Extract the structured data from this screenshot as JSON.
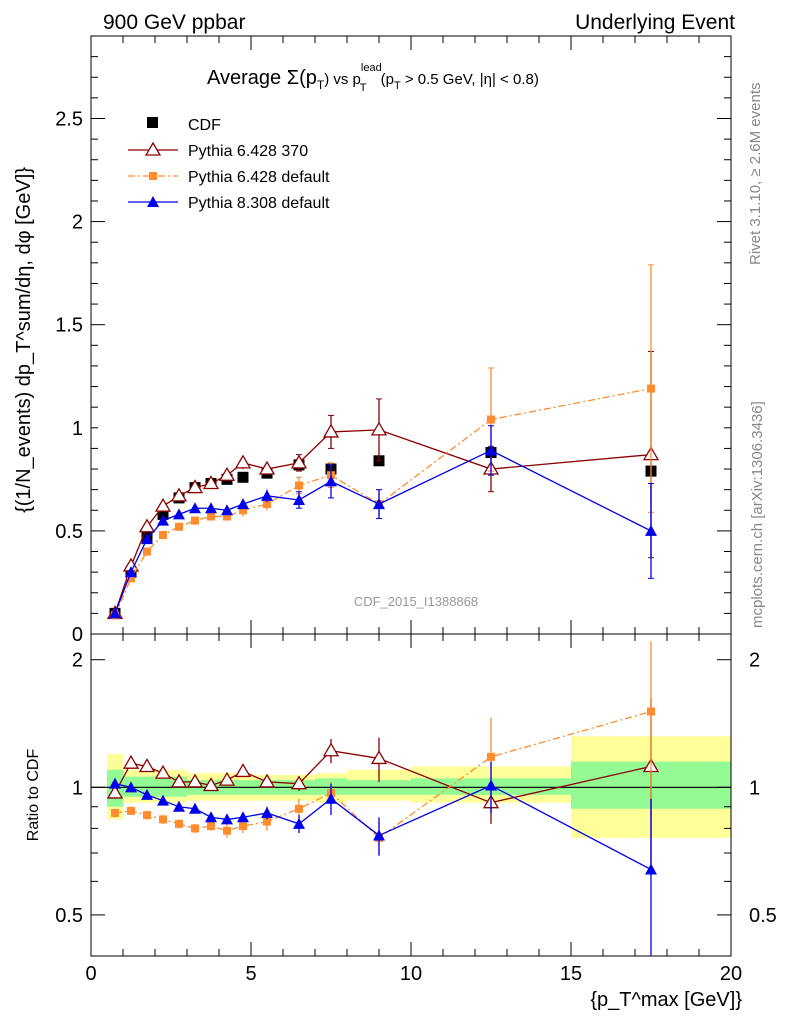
{
  "header": {
    "left": "900 GeV ppbar",
    "right": "Underlying Event"
  },
  "plot_title": {
    "average": "Average",
    "sigma": "Σ(p",
    "sub_t": "T",
    "close_vs": ") vs p",
    "sup_lead": "lead",
    "sub_t2": "T",
    "cut_open": " (p",
    "sub_t3": "T",
    "cut_rest": " > 0.5 GeV, |η| < 0.8)"
  },
  "watermark": "CDF_2015_I1388868",
  "side_labels": {
    "rivet": "Rivet 3.1.10, ≥ 2.6M events",
    "mcplots": "mcplots.cern.ch [arXiv:1306.3436]"
  },
  "axes": {
    "main_ylabel": "{(1/N_events) dp_T^sum/dη, dφ [GeV]}",
    "ratio_ylabel": "Ratio to CDF",
    "xlabel": "{p_T^max [GeV]}"
  },
  "colors": {
    "cdf": "#000000",
    "p6_370": "#8b0000",
    "p6_default": "#ff8c2f",
    "p8_default": "#0000ee",
    "band_inner": "#94fa94",
    "band_outer": "#ffff99"
  },
  "chart_data": [
    {
      "type": "scatter",
      "panel": "main",
      "xlim": [
        0,
        20
      ],
      "ylim": [
        0,
        2.9
      ],
      "x_ticks": [
        0,
        5,
        10,
        15,
        20
      ],
      "y_ticks": [
        0,
        0.5,
        1,
        1.5,
        2,
        2.5
      ],
      "y_tick_labels": [
        "0",
        "0.5",
        "1",
        "1.5",
        "2",
        "2.5"
      ],
      "series": [
        {
          "name": "CDF",
          "marker": "square",
          "x": [
            0.75,
            1.25,
            1.75,
            2.25,
            2.75,
            3.25,
            3.75,
            4.25,
            4.75,
            5.5,
            6.5,
            7.5,
            9.0,
            12.5,
            17.5
          ],
          "y": [
            0.1,
            0.3,
            0.47,
            0.58,
            0.66,
            0.71,
            0.73,
            0.75,
            0.76,
            0.78,
            0.82,
            0.8,
            0.84,
            0.88,
            0.79
          ],
          "err": [
            0.01,
            0.02,
            0.02,
            0.02,
            0.02,
            0.02,
            0.02,
            0.02,
            0.02,
            0.02,
            0.02,
            0.02,
            0.02,
            0.03,
            0.03
          ]
        },
        {
          "name": "Pythia 6.428 370",
          "marker": "open-triangle",
          "x": [
            0.75,
            1.25,
            1.75,
            2.25,
            2.75,
            3.25,
            3.75,
            4.25,
            4.75,
            5.5,
            6.5,
            7.5,
            9.0,
            12.5,
            17.5
          ],
          "y": [
            0.1,
            0.33,
            0.52,
            0.62,
            0.67,
            0.71,
            0.73,
            0.77,
            0.83,
            0.8,
            0.83,
            0.98,
            0.99,
            0.8,
            0.87
          ],
          "err": [
            0.01,
            0.02,
            0.02,
            0.02,
            0.02,
            0.02,
            0.02,
            0.03,
            0.03,
            0.03,
            0.04,
            0.08,
            0.15,
            0.11,
            0.5
          ]
        },
        {
          "name": "Pythia 6.428 default",
          "marker": "square-small",
          "x": [
            0.75,
            1.25,
            1.75,
            2.25,
            2.75,
            3.25,
            3.75,
            4.25,
            4.75,
            5.5,
            6.5,
            7.5,
            9.0,
            12.5,
            17.5
          ],
          "y": [
            0.09,
            0.27,
            0.4,
            0.48,
            0.52,
            0.55,
            0.57,
            0.57,
            0.6,
            0.63,
            0.72,
            0.77,
            0.63,
            1.04,
            1.19
          ],
          "err": [
            0.01,
            0.01,
            0.02,
            0.02,
            0.02,
            0.02,
            0.02,
            0.02,
            0.03,
            0.03,
            0.04,
            0.06,
            0.07,
            0.25,
            0.6
          ]
        },
        {
          "name": "Pythia 8.308 default",
          "marker": "triangle",
          "x": [
            0.75,
            1.25,
            1.75,
            2.25,
            2.75,
            3.25,
            3.75,
            4.25,
            4.75,
            5.5,
            6.5,
            7.5,
            9.0,
            12.5,
            17.5
          ],
          "y": [
            0.1,
            0.3,
            0.46,
            0.55,
            0.58,
            0.61,
            0.61,
            0.6,
            0.63,
            0.67,
            0.65,
            0.74,
            0.63,
            0.89,
            0.5
          ],
          "err": [
            0.01,
            0.02,
            0.02,
            0.02,
            0.02,
            0.02,
            0.02,
            0.02,
            0.02,
            0.03,
            0.04,
            0.08,
            0.07,
            0.12,
            0.23
          ]
        }
      ]
    },
    {
      "type": "scatter",
      "panel": "ratio",
      "xlim": [
        0,
        20
      ],
      "ylim": [
        0.4,
        2.3
      ],
      "log_y": true,
      "x_ticks": [
        0,
        5,
        10,
        15,
        20
      ],
      "x_tick_labels": [
        "0",
        "5",
        "10",
        "15",
        "20"
      ],
      "y_ticks": [
        0.5,
        1,
        2
      ],
      "y_tick_labels": [
        "0.5",
        "1",
        "2"
      ],
      "band_bins": [
        {
          "x0": 0.5,
          "x1": 1.0,
          "inner": [
            0.9,
            1.1
          ],
          "outer": [
            0.84,
            1.2
          ]
        },
        {
          "x0": 1.0,
          "x1": 3.0,
          "inner": [
            0.95,
            1.06
          ],
          "outer": [
            0.92,
            1.1
          ]
        },
        {
          "x0": 3.0,
          "x1": 5.0,
          "inner": [
            0.96,
            1.04
          ],
          "outer": [
            0.93,
            1.08
          ]
        },
        {
          "x0": 5.0,
          "x1": 7.0,
          "inner": [
            0.96,
            1.04
          ],
          "outer": [
            0.93,
            1.07
          ]
        },
        {
          "x0": 7.0,
          "x1": 8.0,
          "inner": [
            0.96,
            1.05
          ],
          "outer": [
            0.92,
            1.08
          ]
        },
        {
          "x0": 8.0,
          "x1": 10.0,
          "inner": [
            0.96,
            1.04
          ],
          "outer": [
            0.93,
            1.1
          ]
        },
        {
          "x0": 10.0,
          "x1": 15.0,
          "inner": [
            0.96,
            1.05
          ],
          "outer": [
            0.92,
            1.12
          ]
        },
        {
          "x0": 15.0,
          "x1": 20.0,
          "inner": [
            0.89,
            1.15
          ],
          "outer": [
            0.76,
            1.32
          ]
        }
      ],
      "series": [
        {
          "name": "Pythia 6.428 370",
          "x": [
            0.75,
            1.25,
            1.75,
            2.25,
            2.75,
            3.25,
            3.75,
            4.25,
            4.75,
            5.5,
            6.5,
            7.5,
            9.0,
            12.5,
            17.5
          ],
          "y": [
            0.97,
            1.14,
            1.12,
            1.08,
            1.03,
            1.03,
            1.01,
            1.04,
            1.09,
            1.03,
            1.02,
            1.22,
            1.17,
            0.92,
            1.12
          ],
          "err": [
            0.03,
            0.02,
            0.02,
            0.02,
            0.02,
            0.02,
            0.02,
            0.03,
            0.03,
            0.03,
            0.04,
            0.08,
            0.14,
            0.1,
            0.5
          ]
        },
        {
          "name": "Pythia 6.428 default",
          "x": [
            0.75,
            1.25,
            1.75,
            2.25,
            2.75,
            3.25,
            3.75,
            4.25,
            4.75,
            5.5,
            6.5,
            7.5,
            9.0,
            12.5,
            17.5
          ],
          "y": [
            0.87,
            0.88,
            0.86,
            0.84,
            0.82,
            0.8,
            0.81,
            0.79,
            0.81,
            0.83,
            0.89,
            0.97,
            0.76,
            1.18,
            1.51
          ],
          "err": [
            0.02,
            0.02,
            0.02,
            0.02,
            0.02,
            0.02,
            0.02,
            0.03,
            0.03,
            0.04,
            0.05,
            0.06,
            0.07,
            0.28,
            0.7
          ]
        },
        {
          "name": "Pythia 8.308 default",
          "x": [
            0.75,
            1.25,
            1.75,
            2.25,
            2.75,
            3.25,
            3.75,
            4.25,
            4.75,
            5.5,
            6.5,
            7.5,
            9.0,
            12.5,
            17.5
          ],
          "y": [
            1.02,
            1.0,
            0.96,
            0.93,
            0.9,
            0.89,
            0.85,
            0.84,
            0.85,
            0.87,
            0.82,
            0.94,
            0.77,
            1.01,
            0.64
          ],
          "err": [
            0.02,
            0.02,
            0.02,
            0.02,
            0.02,
            0.02,
            0.02,
            0.02,
            0.02,
            0.03,
            0.04,
            0.08,
            0.08,
            0.14,
            0.3
          ]
        }
      ]
    }
  ]
}
